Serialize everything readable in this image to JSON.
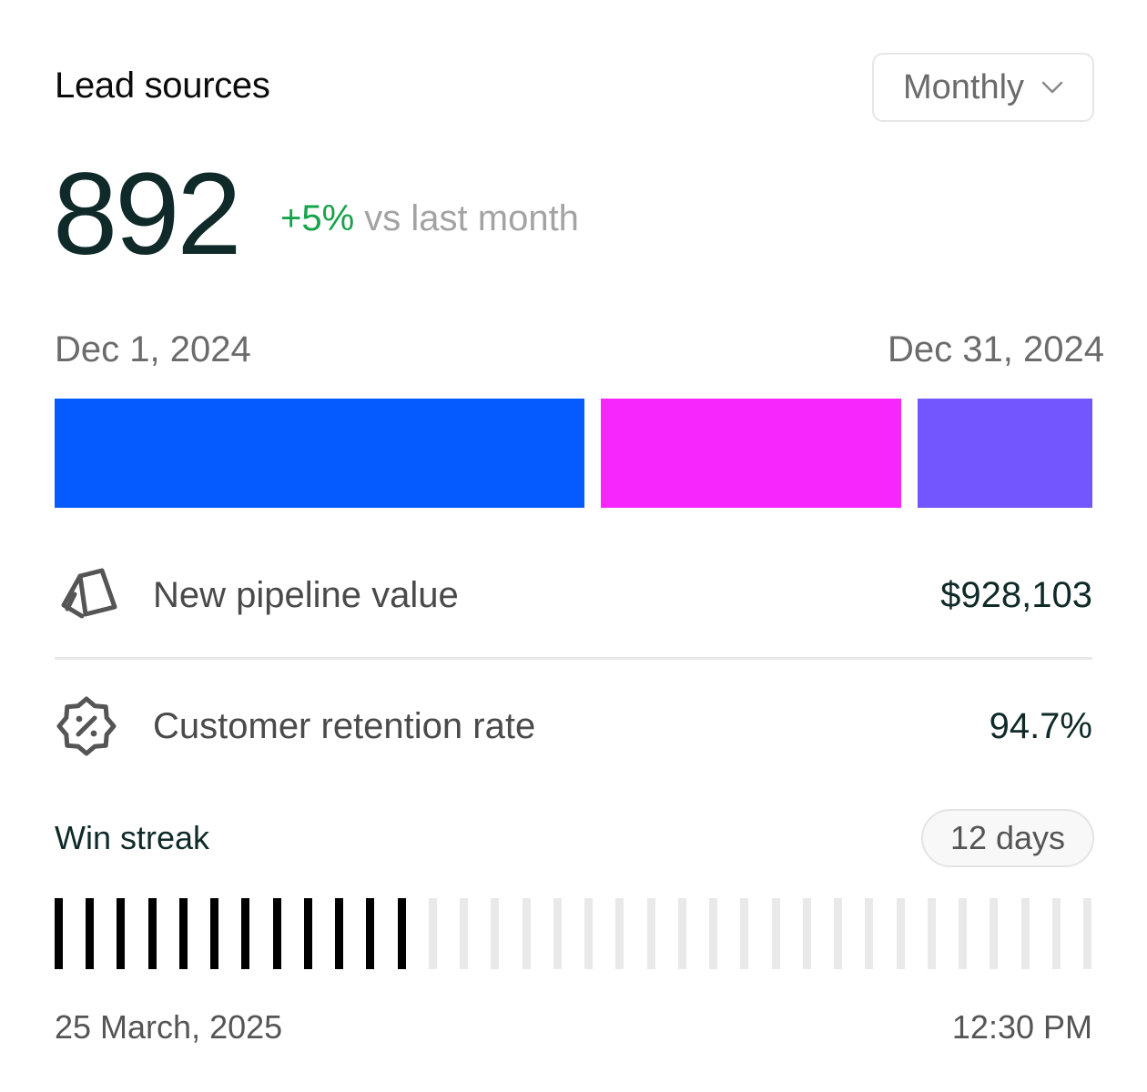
{
  "card": {
    "title": "Lead sources",
    "period": {
      "selected": "Monthly"
    },
    "total": "892",
    "delta": {
      "percent": "+5%",
      "text": " vs last month"
    },
    "range": {
      "start": "Dec 1, 2024",
      "end": "Dec 31, 2024"
    },
    "source_breakdown": {
      "colors": [
        "#055bff",
        "#f726fd",
        "#7356fe"
      ],
      "shares": [
        0.52,
        0.295,
        0.172
      ]
    },
    "metrics": [
      {
        "label": "New pipeline value",
        "value": "$928,103",
        "icon": "swatch-book-icon"
      },
      {
        "label": "Customer retention rate",
        "value": "94.7%",
        "icon": "percent-badge-icon"
      }
    ],
    "streak": {
      "label": "Win streak",
      "badge": "12 days",
      "total_ticks": 34,
      "filled_ticks": 12,
      "filled_color": "#000000",
      "empty_color": "#e9e9e9"
    },
    "footer": {
      "date": "25 March, 2025",
      "time": "12:30 PM"
    }
  }
}
